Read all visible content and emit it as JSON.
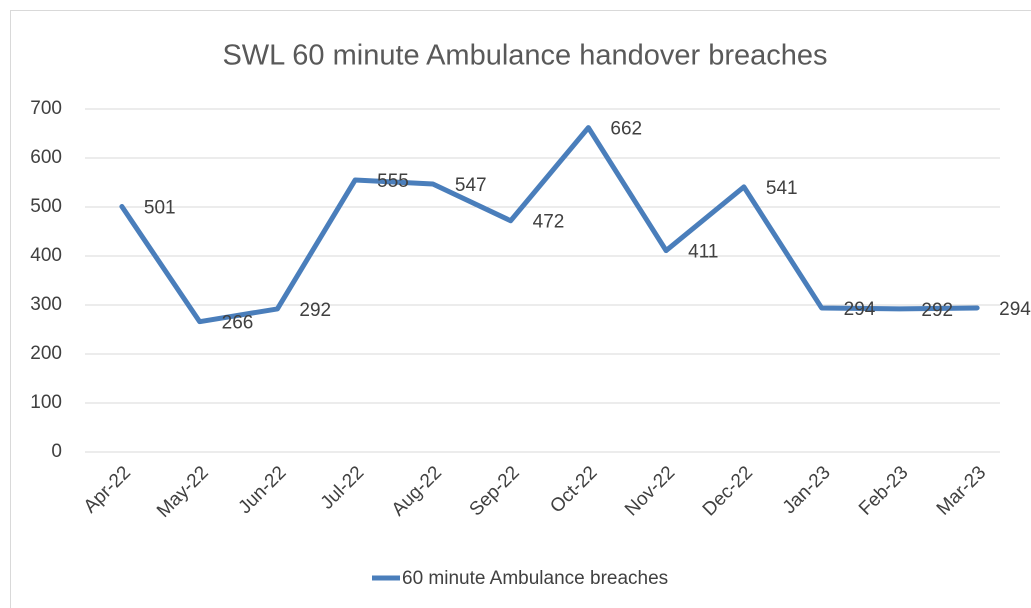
{
  "chart_data": {
    "type": "line",
    "title": "SWL 60 minute Ambulance handover breaches",
    "categories": [
      "Apr-22",
      "May-22",
      "Jun-22",
      "Jul-22",
      "Aug-22",
      "Sep-22",
      "Oct-22",
      "Nov-22",
      "Dec-22",
      "Jan-23",
      "Feb-23",
      "Mar-23"
    ],
    "series": [
      {
        "name": "60 minute Ambulance breaches",
        "color": "#4a7ebb",
        "values": [
          501,
          266,
          292,
          555,
          547,
          472,
          662,
          411,
          541,
          294,
          292,
          294
        ]
      }
    ],
    "ylim": [
      0,
      700
    ],
    "yticks": [
      0,
      100,
      200,
      300,
      400,
      500,
      600,
      700
    ],
    "grid": true,
    "legend": "bottom",
    "data_labels": true
  }
}
